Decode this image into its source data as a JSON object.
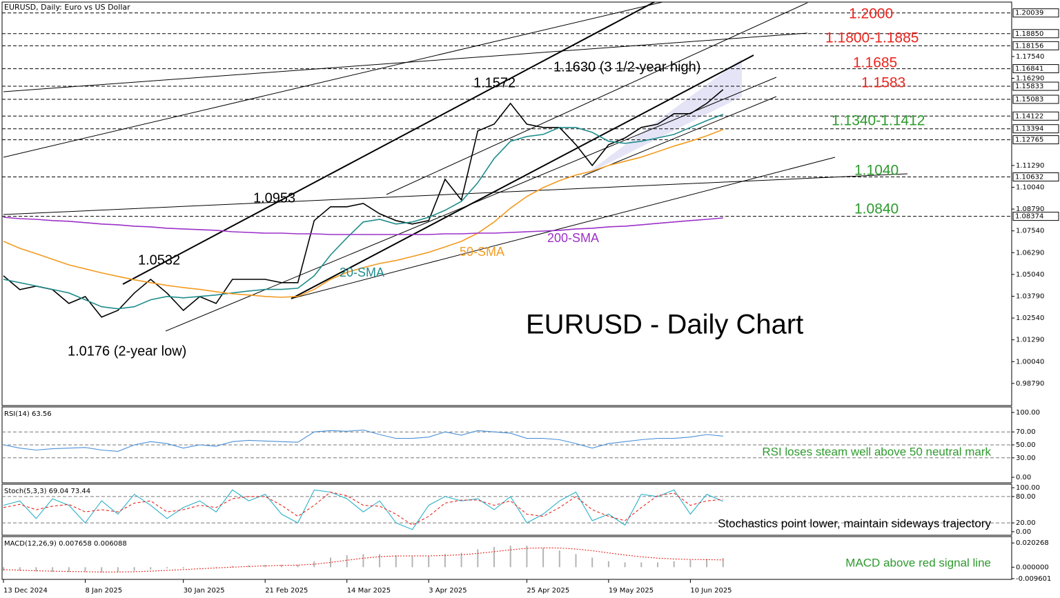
{
  "header": "EURUSD, Daily:  Euro vs US Dollar",
  "chart_data": [
    {
      "type": "line",
      "title": "EURUSD - Daily Chart",
      "categories": [
        "13 Dec 2024",
        null,
        null,
        null,
        null,
        "8 Jan 2025",
        null,
        null,
        null,
        null,
        null,
        "30 Jan 2025",
        null,
        null,
        null,
        null,
        "21 Feb 2025",
        null,
        null,
        null,
        null,
        "14 Mar 2025",
        null,
        null,
        null,
        null,
        "3 Apr 2025",
        null,
        null,
        null,
        null,
        null,
        "25 Apr 2025",
        null,
        null,
        null,
        null,
        "19 May 2025",
        null,
        null,
        null,
        null,
        "10 Jun 2025",
        null,
        null
      ],
      "series": [
        {
          "color": "#000000",
          "values": [
            1.0496,
            1.0417,
            1.0437,
            1.0417,
            1.0338,
            1.0377,
            1.0259,
            1.0298,
            1.0397,
            1.0476,
            1.0397,
            1.0298,
            1.0377,
            1.0338,
            1.0476,
            1.0476,
            1.0476,
            1.0457,
            1.0457,
            1.0813,
            1.0892,
            1.0892,
            1.0911,
            1.0852,
            1.0813,
            1.0793,
            1.0813,
            1.105,
            1.0931,
            1.1327,
            1.1366,
            1.1485,
            1.1366,
            1.1347,
            1.1347,
            1.1248,
            1.1129,
            1.1248,
            1.1287,
            1.1347,
            1.1366,
            1.1426,
            1.1426,
            1.1485,
            1.1564
          ]
        },
        {
          "name": "20-SMA",
          "color": "#1f8c8c",
          "values": [
            1.0476,
            1.0457,
            1.0438,
            1.0418,
            1.0398,
            1.0359,
            1.0319,
            1.0307,
            1.0319,
            1.0359,
            1.0378,
            1.037,
            1.0378,
            1.0386,
            1.0398,
            1.0409,
            1.0418,
            1.0418,
            1.0425,
            1.0496,
            1.0616,
            1.0714,
            1.0805,
            1.082,
            1.0793,
            1.0805,
            1.0832,
            1.0872,
            1.0923,
            1.103,
            1.1169,
            1.1268,
            1.1295,
            1.1307,
            1.1347,
            1.1347,
            1.1319,
            1.1268,
            1.1256,
            1.1268,
            1.1287,
            1.1307,
            1.1347,
            1.1386,
            1.1422
          ]
        },
        {
          "name": "50-SMA",
          "color": "#f39a1e",
          "values": [
            1.0694,
            1.0654,
            1.0623,
            1.0591,
            1.0559,
            1.0536,
            1.0513,
            1.0493,
            1.0473,
            1.0457,
            1.0441,
            1.0429,
            1.0418,
            1.0405,
            1.0393,
            1.0386,
            1.0378,
            1.0373,
            1.0378,
            1.0418,
            1.0476,
            1.0516,
            1.0543,
            1.0567,
            1.0584,
            1.0607,
            1.0631,
            1.0662,
            1.0694,
            1.0741,
            1.0805,
            1.0884,
            1.0951,
            1.1002,
            1.1042,
            1.1074,
            1.1097,
            1.1129,
            1.1153,
            1.1177,
            1.1208,
            1.124,
            1.1268,
            1.1299,
            1.1335
          ]
        },
        {
          "name": "200-SMA",
          "color": "#9b30c8",
          "values": [
            1.0832,
            1.0824,
            1.082,
            1.0813,
            1.0809,
            1.0801,
            1.0793,
            1.0789,
            1.0781,
            1.0777,
            1.0769,
            1.0765,
            1.0761,
            1.0757,
            1.0749,
            1.0745,
            1.0741,
            1.0741,
            1.0737,
            1.0737,
            1.0733,
            1.0733,
            1.0733,
            1.0733,
            1.0733,
            1.0733,
            1.0733,
            1.0737,
            1.0737,
            1.0741,
            1.0741,
            1.0745,
            1.0749,
            1.0753,
            1.0757,
            1.0765,
            1.0769,
            1.0777,
            1.0781,
            1.0789,
            1.0797,
            1.0805,
            1.0813,
            1.082,
            1.0828
          ]
        }
      ],
      "ylim": [
        0.9752,
        1.2078
      ],
      "yticks": [
        {
          "value": 1.1754,
          "label": "1.17540"
        },
        {
          "value": 1.1629,
          "label": "1.16290"
        },
        {
          "value": 1.1129,
          "label": "1.11290"
        },
        {
          "value": 1.1004,
          "label": "1.10040"
        },
        {
          "value": 1.0879,
          "label": "1.08790"
        },
        {
          "value": 1.0754,
          "label": "1.07540"
        },
        {
          "value": 1.0629,
          "label": "1.06290"
        },
        {
          "value": 1.0504,
          "label": "1.05040"
        },
        {
          "value": 1.0379,
          "label": "1.03790"
        },
        {
          "value": 1.0254,
          "label": "1.02540"
        },
        {
          "value": 1.0129,
          "label": "1.01290"
        },
        {
          "value": 1.0004,
          "label": "1.00040"
        },
        {
          "value": 0.9879,
          "label": "0.98790"
        }
      ],
      "levels": [
        1.20039,
        {
          "value": 1.1885,
          "label": "1.18850"
        },
        1.18156,
        1.16841,
        1.15833,
        1.15083,
        1.14122,
        1.13394,
        1.12765,
        1.10632,
        1.08374
      ],
      "annotations": [
        {
          "text": "1.2000",
          "color": "#e8251e"
        },
        {
          "text": "1.1800-1.1885",
          "color": "#e8251e"
        },
        {
          "text": "1.1685",
          "color": "#e8251e"
        },
        {
          "text": "1.1583",
          "color": "#e8251e"
        },
        {
          "text": "1.1340-1.1412",
          "color": "#2e9a2e"
        },
        {
          "text": "1.1040",
          "color": "#2e9a2e"
        },
        {
          "text": "1.0840",
          "color": "#2e9a2e"
        },
        {
          "text": "1.1630 (3 1/2-year high)",
          "color": "#000000"
        },
        {
          "text": "1.1572",
          "color": "#000000"
        },
        {
          "text": "1.0953",
          "color": "#000000"
        },
        {
          "text": "1.0532",
          "color": "#000000"
        },
        {
          "text": "1.0176 (2-year low)",
          "color": "#000000"
        }
      ]
    },
    {
      "type": "line",
      "title": "RSI(14)",
      "series": [
        {
          "color": "#4a8fd6",
          "values": [
            50,
            45,
            42,
            44,
            45,
            46,
            42,
            40,
            50,
            55,
            52,
            45,
            50,
            48,
            55,
            57,
            56,
            55,
            54,
            70,
            72,
            71,
            73,
            66,
            60,
            60,
            62,
            70,
            65,
            72,
            70,
            68,
            60,
            60,
            58,
            52,
            45,
            52,
            55,
            58,
            60,
            60,
            62,
            66,
            63.56
          ]
        }
      ],
      "ylim": [
        -8.5,
        108.5
      ],
      "yticks": [
        {
          "value": 100,
          "label": "100.00"
        },
        {
          "value": 70,
          "label": "70.00"
        },
        {
          "value": 50,
          "label": "50.00"
        },
        {
          "value": 30,
          "label": "30.00"
        },
        {
          "value": 0,
          "label": "0.00"
        }
      ],
      "levels": [
        70,
        50,
        30
      ],
      "annotation": {
        "text": "RSI loses steam well above 50 neutral mark",
        "color": "#2e9a2e"
      }
    },
    {
      "type": "line",
      "title": "Stoch(5,3,3)",
      "series": [
        {
          "color": "#2ab0c8",
          "values": [
            60,
            70,
            30,
            75,
            60,
            20,
            70,
            40,
            85,
            60,
            30,
            55,
            70,
            45,
            95,
            70,
            85,
            40,
            20,
            95,
            90,
            75,
            45,
            70,
            20,
            5,
            60,
            80,
            70,
            75,
            50,
            80,
            20,
            40,
            70,
            90,
            25,
            40,
            15,
            85,
            80,
            95,
            40,
            85,
            69.04
          ]
        },
        {
          "color": "#e8251e",
          "dash": "4,3",
          "values": [
            55,
            62,
            50,
            58,
            62,
            45,
            50,
            45,
            65,
            70,
            45,
            50,
            60,
            55,
            75,
            80,
            80,
            60,
            35,
            60,
            90,
            82,
            60,
            58,
            40,
            15,
            35,
            65,
            72,
            72,
            60,
            70,
            40,
            35,
            55,
            80,
            50,
            35,
            25,
            55,
            82,
            88,
            60,
            70,
            73.44
          ]
        }
      ],
      "ylim": [
        -8,
        108
      ],
      "yticks": [
        {
          "value": 100,
          "label": "100.00"
        },
        {
          "value": 80,
          "label": "80.00"
        },
        {
          "value": 20,
          "label": "20.00"
        },
        {
          "value": 0,
          "label": "0.00"
        }
      ],
      "levels": [
        80,
        20
      ],
      "annotation": {
        "text": "Stochastics point lower, maintain sideways trajectory",
        "color": "#000000"
      }
    },
    {
      "type": "bar",
      "title": "MACD(12,26,9)",
      "series": [
        {
          "color": "#b4b4b4",
          "values": [
            -0.003,
            -0.003,
            -0.0035,
            -0.004,
            -0.004,
            -0.004,
            -0.0045,
            -0.004,
            -0.003,
            -0.002,
            -0.001,
            -0.001,
            0,
            0.0005,
            0.001,
            0.0015,
            0.002,
            0.002,
            0.002,
            0.005,
            0.008,
            0.01,
            0.011,
            0.011,
            0.01,
            0.009,
            0.009,
            0.011,
            0.012,
            0.015,
            0.017,
            0.018,
            0.018,
            0.016,
            0.014,
            0.011,
            0.008,
            0.005,
            0.004,
            0.004,
            0.004,
            0.005,
            0.006,
            0.007,
            0.007658
          ]
        },
        {
          "type": "line",
          "color": "#e8251e",
          "dash": "2,2",
          "values": [
            -0.002,
            -0.0025,
            -0.003,
            -0.0033,
            -0.0036,
            -0.0038,
            -0.004,
            -0.004,
            -0.0038,
            -0.0033,
            -0.0027,
            -0.002,
            -0.0013,
            -0.0006,
            0,
            0.0006,
            0.0011,
            0.0015,
            0.0017,
            0.0025,
            0.004,
            0.0058,
            0.0075,
            0.0088,
            0.0094,
            0.0095,
            0.0095,
            0.0098,
            0.0104,
            0.0115,
            0.013,
            0.0145,
            0.0158,
            0.0162,
            0.016,
            0.0152,
            0.0138,
            0.012,
            0.0102,
            0.0087,
            0.0076,
            0.0069,
            0.0065,
            0.0063,
            0.006088
          ]
        }
      ],
      "ylim": [
        -0.0102,
        0.0256
      ],
      "yticks": [
        0.020268,
        {
          "value": 0,
          "label": "0.000000"
        },
        -0.009601
      ],
      "annotation": {
        "text": "MACD above red signal line",
        "color": "#2e9a2e"
      }
    }
  ]
}
